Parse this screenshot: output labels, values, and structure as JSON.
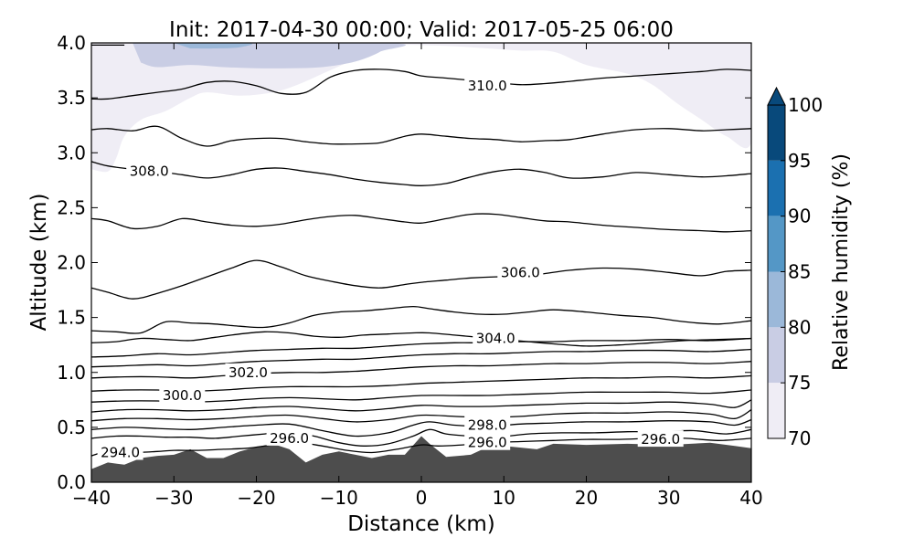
{
  "chart_data": {
    "type": "contour",
    "title": "Init: 2017-04-30 00:00; Valid: 2017-05-25 06:00",
    "xlabel": "Distance (km)",
    "ylabel": "Altitude (km)",
    "xlim": [
      -40,
      40
    ],
    "ylim": [
      0.0,
      4.0
    ],
    "x_ticks": [
      "−40",
      "−30",
      "−20",
      "−10",
      "0",
      "10",
      "20",
      "30",
      "40"
    ],
    "y_ticks": [
      "0.0",
      "0.5",
      "1.0",
      "1.5",
      "2.0",
      "2.5",
      "3.0",
      "3.5",
      "4.0"
    ],
    "colorbar": {
      "label": "Relative humidity (%)",
      "ticks": [
        "70",
        "75",
        "80",
        "85",
        "90",
        "95",
        "100"
      ],
      "extend": "max",
      "levels": [
        {
          "from": 70,
          "to": 75,
          "color": "#efedf5"
        },
        {
          "from": 75,
          "to": 80,
          "color": "#c9cde4"
        },
        {
          "from": 80,
          "to": 85,
          "color": "#9bb8d9"
        },
        {
          "from": 85,
          "to": 90,
          "color": "#5497c6"
        },
        {
          "from": 90,
          "to": 95,
          "color": "#1b70b0"
        },
        {
          "from": 95,
          "to": 100,
          "color": "#08497b"
        }
      ]
    },
    "terrain_color": "#4d4d4d",
    "terrain": {
      "x": [
        -40,
        -38,
        -36,
        -34,
        -32,
        -30,
        -28,
        -26,
        -24,
        -22,
        -20,
        -18,
        -16,
        -14,
        -12,
        -10,
        -8,
        -6,
        -4,
        -2,
        0,
        1,
        3,
        6,
        8,
        10,
        14,
        16,
        20,
        25,
        30,
        35,
        38,
        40
      ],
      "y": [
        0.12,
        0.18,
        0.16,
        0.22,
        0.24,
        0.25,
        0.3,
        0.22,
        0.22,
        0.28,
        0.32,
        0.35,
        0.3,
        0.18,
        0.25,
        0.28,
        0.25,
        0.22,
        0.25,
        0.25,
        0.42,
        0.35,
        0.23,
        0.25,
        0.32,
        0.33,
        0.3,
        0.35,
        0.34,
        0.35,
        0.34,
        0.36,
        0.33,
        0.31
      ]
    },
    "contour_levels_labeled": [
      {
        "text": "294.0",
        "x": -36.5,
        "y": 0.27
      },
      {
        "text": "296.0",
        "x": -16,
        "y": 0.4
      },
      {
        "text": "296.0",
        "x": 8,
        "y": 0.36
      },
      {
        "text": "296.0",
        "x": 29,
        "y": 0.39
      },
      {
        "text": "298.0",
        "x": 8,
        "y": 0.52
      },
      {
        "text": "300.0",
        "x": -29,
        "y": 0.79
      },
      {
        "text": "302.0",
        "x": -21,
        "y": 1.0
      },
      {
        "text": "304.0",
        "x": 9,
        "y": 1.31
      },
      {
        "text": "306.0",
        "x": 12,
        "y": 1.91
      },
      {
        "text": "308.0",
        "x": -33,
        "y": 2.83
      },
      {
        "text": "310.0",
        "x": 8,
        "y": 3.61
      }
    ],
    "contours": [
      {
        "x": [
          -40,
          -38,
          -35,
          -32,
          -30,
          -27,
          -24,
          -21,
          -18,
          -15,
          -12,
          -9,
          -6,
          -3,
          0,
          2,
          5,
          8,
          12,
          16,
          20,
          24,
          28,
          32,
          36,
          40
        ],
        "y": [
          0.24,
          0.28,
          0.27,
          0.28,
          0.29,
          0.29,
          0.3,
          0.31,
          0.34,
          0.36,
          0.33,
          0.29,
          0.27,
          0.3,
          0.34,
          0.33,
          0.34,
          0.36,
          0.37,
          0.38,
          0.39,
          0.39,
          0.4,
          0.4,
          0.38,
          0.4
        ]
      },
      {
        "x": [
          -40,
          -37,
          -34,
          -31,
          -28,
          -25,
          -22,
          -19,
          -16,
          -13,
          -10,
          -7,
          -4,
          -1,
          1,
          3,
          6,
          9,
          13,
          17,
          21,
          25,
          29,
          33,
          37,
          40
        ],
        "y": [
          0.4,
          0.42,
          0.42,
          0.41,
          0.41,
          0.4,
          0.42,
          0.44,
          0.46,
          0.42,
          0.36,
          0.33,
          0.35,
          0.42,
          0.48,
          0.44,
          0.42,
          0.41,
          0.44,
          0.45,
          0.45,
          0.46,
          0.46,
          0.47,
          0.44,
          0.48
        ]
      },
      {
        "x": [
          -40,
          -36,
          -32,
          -28,
          -24,
          -20,
          -16,
          -12,
          -8,
          -4,
          -1,
          1,
          4,
          8,
          12,
          16,
          20,
          25,
          30,
          35,
          38,
          40
        ],
        "y": [
          0.48,
          0.5,
          0.49,
          0.48,
          0.5,
          0.52,
          0.53,
          0.47,
          0.42,
          0.45,
          0.52,
          0.55,
          0.52,
          0.51,
          0.53,
          0.54,
          0.55,
          0.55,
          0.56,
          0.55,
          0.52,
          0.57
        ]
      },
      {
        "x": [
          -40,
          -36,
          -32,
          -28,
          -24,
          -20,
          -16,
          -12,
          -8,
          -4,
          0,
          4,
          8,
          12,
          16,
          20,
          25,
          30,
          35,
          38,
          40
        ],
        "y": [
          0.56,
          0.58,
          0.58,
          0.57,
          0.58,
          0.6,
          0.61,
          0.58,
          0.55,
          0.57,
          0.61,
          0.6,
          0.59,
          0.6,
          0.62,
          0.63,
          0.63,
          0.64,
          0.62,
          0.58,
          0.66
        ]
      },
      {
        "x": [
          -40,
          -36,
          -32,
          -28,
          -24,
          -20,
          -16,
          -12,
          -8,
          -4,
          0,
          4,
          8,
          12,
          16,
          20,
          25,
          30,
          35,
          38,
          40
        ],
        "y": [
          0.64,
          0.66,
          0.66,
          0.65,
          0.66,
          0.68,
          0.69,
          0.67,
          0.65,
          0.67,
          0.7,
          0.69,
          0.69,
          0.7,
          0.71,
          0.72,
          0.72,
          0.73,
          0.71,
          0.68,
          0.75
        ]
      },
      {
        "x": [
          -40,
          -36,
          -32,
          -28,
          -24,
          -20,
          -16,
          -12,
          -8,
          -4,
          0,
          4,
          8,
          12,
          16,
          20,
          25,
          30,
          35,
          40
        ],
        "y": [
          0.73,
          0.74,
          0.74,
          0.73,
          0.74,
          0.76,
          0.77,
          0.76,
          0.75,
          0.77,
          0.79,
          0.79,
          0.79,
          0.8,
          0.81,
          0.82,
          0.82,
          0.82,
          0.81,
          0.84
        ]
      },
      {
        "x": [
          -40,
          -36,
          -32,
          -28,
          -24,
          -20,
          -16,
          -12,
          -8,
          -4,
          0,
          4,
          8,
          12,
          16,
          20,
          25,
          30,
          35,
          40
        ],
        "y": [
          0.83,
          0.84,
          0.84,
          0.83,
          0.84,
          0.86,
          0.87,
          0.87,
          0.87,
          0.88,
          0.9,
          0.91,
          0.92,
          0.93,
          0.94,
          0.95,
          0.95,
          0.96,
          0.95,
          0.97
        ]
      },
      {
        "x": [
          -40,
          -36,
          -32,
          -28,
          -24,
          -20,
          -16,
          -12,
          -8,
          -4,
          0,
          4,
          8,
          12,
          16,
          20,
          25,
          30,
          35,
          40
        ],
        "y": [
          0.95,
          0.96,
          0.96,
          0.95,
          0.97,
          0.99,
          1.0,
          1.0,
          1.01,
          1.03,
          1.05,
          1.06,
          1.06,
          1.07,
          1.08,
          1.08,
          1.09,
          1.09,
          1.08,
          1.1
        ]
      },
      {
        "x": [
          -40,
          -36,
          -32,
          -28,
          -24,
          -20,
          -16,
          -12,
          -8,
          -4,
          0,
          4,
          8,
          12,
          16,
          20,
          25,
          30,
          35,
          40
        ],
        "y": [
          1.05,
          1.06,
          1.07,
          1.06,
          1.08,
          1.1,
          1.11,
          1.12,
          1.12,
          1.14,
          1.16,
          1.17,
          1.17,
          1.18,
          1.19,
          1.19,
          1.2,
          1.2,
          1.19,
          1.21
        ]
      },
      {
        "x": [
          -40,
          -36,
          -32,
          -28,
          -24,
          -20,
          -16,
          -12,
          -8,
          -4,
          0,
          4,
          8,
          12,
          16,
          20,
          25,
          30,
          35,
          40
        ],
        "y": [
          1.14,
          1.15,
          1.17,
          1.16,
          1.18,
          1.2,
          1.21,
          1.22,
          1.22,
          1.24,
          1.26,
          1.27,
          1.27,
          1.28,
          1.28,
          1.29,
          1.29,
          1.3,
          1.29,
          1.31
        ]
      },
      {
        "x": [
          -40,
          -37,
          -34,
          -31,
          -28,
          -25,
          -22,
          -19,
          -16,
          -13,
          -10,
          -7,
          -4,
          -1,
          1,
          4,
          7,
          10,
          13,
          16,
          20,
          24,
          28,
          32,
          36,
          40
        ],
        "y": [
          1.27,
          1.28,
          1.31,
          1.3,
          1.29,
          1.32,
          1.35,
          1.37,
          1.36,
          1.33,
          1.32,
          1.34,
          1.35,
          1.36,
          1.36,
          1.34,
          1.32,
          1.3,
          1.28,
          1.26,
          1.24,
          1.25,
          1.27,
          1.29,
          1.3,
          1.31
        ]
      },
      {
        "x": [
          -40,
          -37,
          -34,
          -31,
          -28,
          -25,
          -22,
          -19,
          -16,
          -13,
          -10,
          -7,
          -4,
          -1,
          1,
          4,
          7,
          10,
          13,
          16,
          20,
          24,
          28,
          32,
          36,
          40
        ],
        "y": [
          1.38,
          1.37,
          1.36,
          1.46,
          1.45,
          1.44,
          1.42,
          1.41,
          1.45,
          1.52,
          1.55,
          1.56,
          1.58,
          1.6,
          1.58,
          1.55,
          1.53,
          1.53,
          1.55,
          1.57,
          1.55,
          1.52,
          1.5,
          1.46,
          1.44,
          1.47
        ]
      },
      {
        "x": [
          -40,
          -38,
          -35,
          -32,
          -29,
          -26,
          -23,
          -20,
          -17,
          -14,
          -11,
          -8,
          -5,
          -2,
          0,
          3,
          6,
          9,
          12,
          15,
          18,
          22,
          26,
          30,
          34,
          37,
          40
        ],
        "y": [
          1.77,
          1.73,
          1.67,
          1.72,
          1.79,
          1.87,
          1.95,
          2.02,
          1.96,
          1.88,
          1.83,
          1.79,
          1.77,
          1.8,
          1.82,
          1.84,
          1.86,
          1.87,
          1.87,
          1.9,
          1.93,
          1.95,
          1.94,
          1.91,
          1.88,
          1.92,
          1.93
        ]
      },
      {
        "x": [
          -40,
          -38,
          -35,
          -32,
          -29,
          -26,
          -23,
          -20,
          -17,
          -14,
          -11,
          -8,
          -5,
          -2,
          0,
          3,
          6,
          9,
          12,
          15,
          18,
          22,
          26,
          30,
          34,
          37,
          40
        ],
        "y": [
          2.4,
          2.38,
          2.31,
          2.33,
          2.4,
          2.37,
          2.34,
          2.33,
          2.35,
          2.39,
          2.42,
          2.43,
          2.4,
          2.37,
          2.36,
          2.4,
          2.44,
          2.44,
          2.41,
          2.38,
          2.37,
          2.34,
          2.32,
          2.3,
          2.29,
          2.28,
          2.29
        ]
      },
      {
        "x": [
          -40,
          -38,
          -35,
          -32,
          -29,
          -26,
          -23,
          -20,
          -17,
          -14,
          -11,
          -8,
          -5,
          -2,
          0,
          3,
          6,
          9,
          12,
          15,
          18,
          22,
          26,
          30,
          34,
          37,
          40
        ],
        "y": [
          2.92,
          2.88,
          2.85,
          2.83,
          2.8,
          2.77,
          2.8,
          2.85,
          2.86,
          2.83,
          2.8,
          2.76,
          2.73,
          2.71,
          2.7,
          2.72,
          2.78,
          2.83,
          2.85,
          2.82,
          2.77,
          2.78,
          2.82,
          2.8,
          2.78,
          2.79,
          2.81
        ]
      },
      {
        "x": [
          -40,
          -38,
          -35,
          -32,
          -29,
          -26,
          -23,
          -20,
          -17,
          -14,
          -11,
          -8,
          -5,
          -2,
          0,
          3,
          6,
          9,
          12,
          15,
          18,
          22,
          26,
          30,
          34,
          37,
          40
        ],
        "y": [
          3.21,
          3.22,
          3.2,
          3.24,
          3.13,
          3.06,
          3.11,
          3.13,
          3.13,
          3.1,
          3.08,
          3.08,
          3.09,
          3.15,
          3.17,
          3.15,
          3.13,
          3.12,
          3.1,
          3.11,
          3.12,
          3.17,
          3.21,
          3.22,
          3.2,
          3.21,
          3.22
        ]
      },
      {
        "x": [
          -40,
          -38,
          -35,
          -32,
          -29,
          -26,
          -23,
          -20,
          -17,
          -14,
          -11,
          -8,
          -5,
          -2,
          0,
          3,
          6,
          9,
          12,
          15,
          18,
          22,
          26,
          30,
          34,
          37,
          40
        ],
        "y": [
          3.49,
          3.49,
          3.52,
          3.55,
          3.58,
          3.64,
          3.65,
          3.61,
          3.54,
          3.55,
          3.69,
          3.75,
          3.76,
          3.74,
          3.7,
          3.68,
          3.66,
          3.64,
          3.62,
          3.63,
          3.65,
          3.68,
          3.7,
          3.72,
          3.74,
          3.76,
          3.75
        ]
      },
      {
        "x": [
          -40,
          -36
        ],
        "y": [
          3.98,
          3.98
        ]
      }
    ]
  }
}
